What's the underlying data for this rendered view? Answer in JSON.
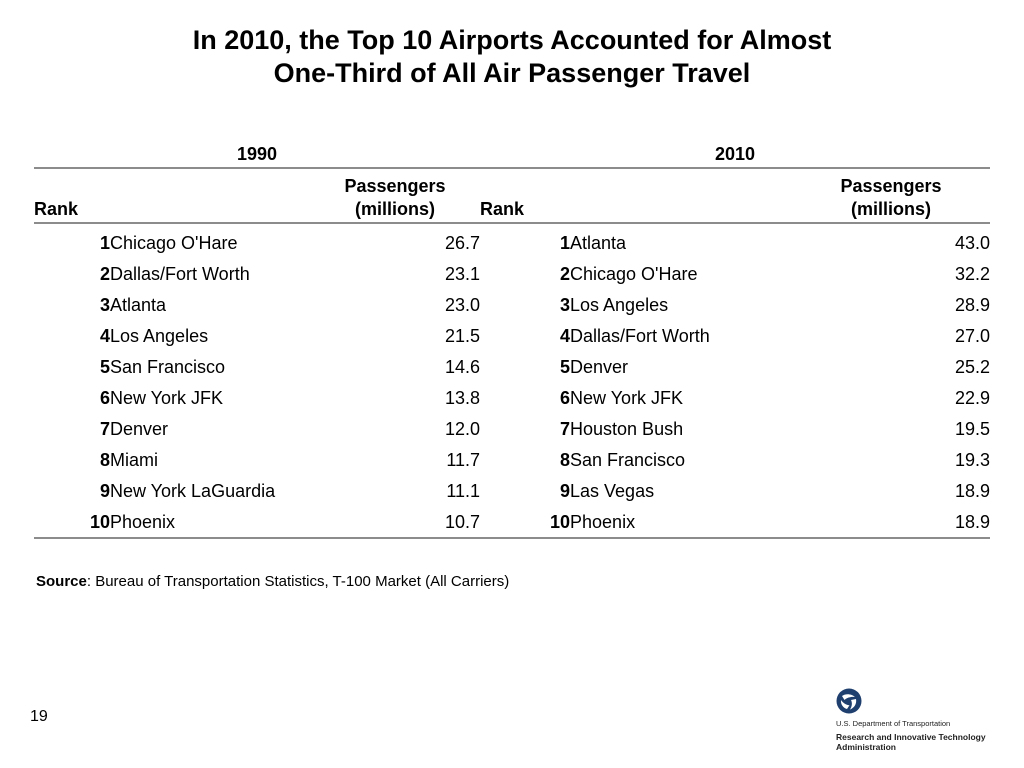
{
  "title": {
    "line1": "In 2010, the Top 10 Airports Accounted for Almost",
    "line2": "One-Third of All Air Passenger Travel"
  },
  "table": {
    "groups": [
      "1990",
      "2010"
    ],
    "headers": {
      "rank": "Rank",
      "passengers_line1": "Passengers",
      "passengers_line2": "(millions)"
    },
    "rows": [
      {
        "rank": "1",
        "airport_1990": "Chicago O'Hare",
        "pass_1990": "26.7",
        "rank_2010": "1",
        "airport_2010": "Atlanta",
        "pass_2010": "43.0"
      },
      {
        "rank": "2",
        "airport_1990": "Dallas/Fort Worth",
        "pass_1990": "23.1",
        "rank_2010": "2",
        "airport_2010": "Chicago O'Hare",
        "pass_2010": "32.2"
      },
      {
        "rank": "3",
        "airport_1990": "Atlanta",
        "pass_1990": "23.0",
        "rank_2010": "3",
        "airport_2010": "Los Angeles",
        "pass_2010": "28.9"
      },
      {
        "rank": "4",
        "airport_1990": "Los Angeles",
        "pass_1990": "21.5",
        "rank_2010": "4",
        "airport_2010": "Dallas/Fort Worth",
        "pass_2010": "27.0"
      },
      {
        "rank": "5",
        "airport_1990": "San Francisco",
        "pass_1990": "14.6",
        "rank_2010": "5",
        "airport_2010": "Denver",
        "pass_2010": "25.2"
      },
      {
        "rank": "6",
        "airport_1990": "New York JFK",
        "pass_1990": "13.8",
        "rank_2010": "6",
        "airport_2010": "New York JFK",
        "pass_2010": "22.9"
      },
      {
        "rank": "7",
        "airport_1990": "Denver",
        "pass_1990": "12.0",
        "rank_2010": "7",
        "airport_2010": "Houston Bush",
        "pass_2010": "19.5"
      },
      {
        "rank": "8",
        "airport_1990": "Miami",
        "pass_1990": "11.7",
        "rank_2010": "8",
        "airport_2010": "San Francisco",
        "pass_2010": "19.3"
      },
      {
        "rank": "9",
        "airport_1990": "New York LaGuardia",
        "pass_1990": "11.1",
        "rank_2010": "9",
        "airport_2010": "Las Vegas",
        "pass_2010": "18.9"
      },
      {
        "rank": "10",
        "airport_1990": "Phoenix",
        "pass_1990": "10.7",
        "rank_2010": "10",
        "airport_2010": "Phoenix",
        "pass_2010": "18.9"
      }
    ]
  },
  "source": {
    "label": "Source",
    "text": ": Bureau of Transportation Statistics, T-100 Market (All Carriers)"
  },
  "page_number": "19",
  "logo": {
    "icon": "usdot-triskelion-icon",
    "department": "U.S. Department of Transportation",
    "agency_line1": "Research and Innovative Technology",
    "agency_line2": "Administration",
    "color": "#1f3f6e"
  }
}
